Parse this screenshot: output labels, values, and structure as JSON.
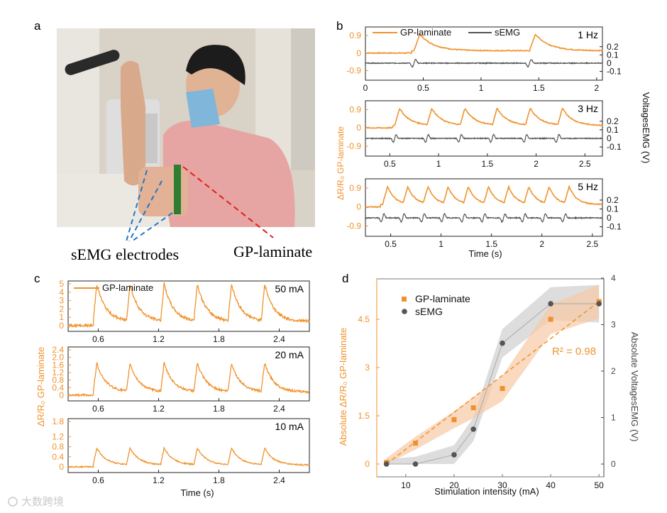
{
  "colors": {
    "orange": "#f0922b",
    "gray": "#555555",
    "orange_fill": "#f7c9a4",
    "gray_fill": "#cfcfcf"
  },
  "panel_a": {
    "letter": "a",
    "label_semg": "sEMG electrodes",
    "label_gp": "GP-laminate"
  },
  "panel_b": {
    "letter": "b",
    "y_left_label": "ΔR/R₀ GP-laminate",
    "y_right_label": "VoltagesEMG (V)",
    "legend": {
      "gp": "GP-laminate",
      "semg": "sEMG"
    },
    "xlabel": "Time (s)"
  },
  "panel_c": {
    "letter": "c",
    "y_label": "ΔR/R₀ GP-laminate",
    "legend_gp": "GP-laminate",
    "xlabel": "Time (s)"
  },
  "panel_d": {
    "letter": "d",
    "legend": {
      "gp": "GP-laminate",
      "semg": "sEMG"
    },
    "r2": "R² = 0.98",
    "xlabel": "Stimulation intensity (mA)",
    "y_left_label": "Absolute ΔR/R₀ GP-laminate",
    "y_right_label": "Absolute VoltagesEMG (V)"
  },
  "watermark": "大数跨境",
  "chart_data": [
    {
      "type": "line",
      "id": "b1",
      "annotation": "1 Hz",
      "x_ticks": [
        "0",
        "0.5",
        "1",
        "1.5",
        "2"
      ],
      "xlim": [
        0,
        2.05
      ],
      "y_left_ticks": [
        "0.9",
        "0",
        "-0.9"
      ],
      "y_right_ticks": [
        "0.2",
        "0.1",
        "0",
        "-0.1"
      ],
      "series": [
        {
          "name": "GP-laminate",
          "axis": "left",
          "pulse_times": [
            0.42,
            1.42
          ]
        },
        {
          "name": "sEMG",
          "axis": "right",
          "pulse_times": [
            0.42,
            1.42
          ]
        }
      ]
    },
    {
      "type": "line",
      "id": "b2",
      "annotation": "3 Hz",
      "x_ticks": [
        "0.5",
        "1",
        "1.5",
        "2",
        "2.5"
      ],
      "xlim": [
        0.25,
        2.68
      ],
      "y_left_ticks": [
        "0.9",
        "0",
        "-0.9"
      ],
      "y_right_ticks": [
        "0.2",
        "0.1",
        "0",
        "-0.1"
      ],
      "series": [
        {
          "name": "GP-laminate",
          "axis": "left",
          "pulse_times": [
            0.55,
            0.88,
            1.22,
            1.55,
            1.89,
            2.22
          ]
        },
        {
          "name": "sEMG",
          "axis": "right",
          "pulse_times": [
            0.55,
            0.88,
            1.22,
            1.55,
            1.89,
            2.22
          ]
        }
      ]
    },
    {
      "type": "line",
      "id": "b3",
      "annotation": "5 Hz",
      "x_ticks": [
        "0.5",
        "1",
        "1.5",
        "2",
        "2.5"
      ],
      "xlim": [
        0.25,
        2.6
      ],
      "y_left_ticks": [
        "0.9",
        "0",
        "-0.9"
      ],
      "y_right_ticks": [
        "0.2",
        "0.1",
        "0",
        "-0.1"
      ],
      "series": [
        {
          "name": "GP-laminate",
          "axis": "left",
          "pulse_times": [
            0.42,
            0.62,
            0.82,
            1.02,
            1.22,
            1.42,
            1.62,
            1.82,
            2.02,
            2.22
          ]
        },
        {
          "name": "sEMG",
          "axis": "right",
          "pulse_times": [
            0.42,
            0.62,
            0.82,
            1.02,
            1.22,
            1.42,
            1.62,
            1.82,
            2.02,
            2.22
          ]
        }
      ]
    },
    {
      "type": "line",
      "id": "c1",
      "annotation": "50 mA",
      "x_ticks": [
        "0.6",
        "1.2",
        "1.8",
        "2.4"
      ],
      "xlim": [
        0.3,
        2.7
      ],
      "y_ticks": [
        "5",
        "4",
        "3",
        "2",
        "1",
        "0"
      ],
      "ylim": [
        0,
        5
      ],
      "series": [
        {
          "name": "GP-laminate",
          "peak": 5.0,
          "pulse_times": [
            0.55,
            0.88,
            1.22,
            1.55,
            1.89,
            2.22
          ]
        }
      ]
    },
    {
      "type": "line",
      "id": "c2",
      "annotation": "20 mA",
      "x_ticks": [
        "0.6",
        "1.2",
        "1.8",
        "2.4"
      ],
      "xlim": [
        0.3,
        2.7
      ],
      "y_ticks": [
        "2.4",
        "2.0",
        "1.6",
        "1.2",
        "0.8",
        "0.4",
        "0"
      ],
      "ylim": [
        0,
        2.4
      ],
      "series": [
        {
          "name": "GP-laminate",
          "peak": 1.7,
          "pulse_times": [
            0.55,
            0.88,
            1.22,
            1.55,
            1.89,
            2.22
          ]
        }
      ]
    },
    {
      "type": "line",
      "id": "c3",
      "annotation": "10 mA",
      "x_ticks": [
        "0.6",
        "1.2",
        "1.8",
        "2.4"
      ],
      "xlim": [
        0.3,
        2.7
      ],
      "y_ticks": [
        "1.8",
        "1.2",
        "0.8",
        "0.4",
        "0"
      ],
      "ylim": [
        0,
        1.8
      ],
      "series": [
        {
          "name": "GP-laminate",
          "peak": 0.75,
          "pulse_times": [
            0.55,
            0.88,
            1.22,
            1.55,
            1.89,
            2.22
          ]
        }
      ]
    },
    {
      "type": "scatter",
      "id": "d",
      "x": [
        6,
        12,
        20,
        24,
        30,
        40,
        50
      ],
      "xlim": [
        4,
        51
      ],
      "x_ticks": [
        "10",
        "20",
        "30",
        "40",
        "50"
      ],
      "y_left_ticks": [
        "0",
        "1.5",
        "3",
        "4.5"
      ],
      "ylim_left": [
        0,
        5.85
      ],
      "y_right_ticks": [
        "0",
        "1",
        "2",
        "3",
        "4"
      ],
      "ylim_right": [
        0,
        4
      ],
      "series": [
        {
          "name": "GP-laminate",
          "axis": "left",
          "x": [
            6,
            12,
            20,
            24,
            30,
            40,
            50
          ],
          "values": [
            0.05,
            0.65,
            1.38,
            1.75,
            2.35,
            4.5,
            5.05
          ]
        },
        {
          "name": "sEMG",
          "axis": "right",
          "x": [
            6,
            12,
            20,
            24,
            30,
            40,
            50
          ],
          "values": [
            0.0,
            0.0,
            0.2,
            0.75,
            2.6,
            3.45,
            3.45
          ]
        }
      ],
      "fit": {
        "type": "linear",
        "label": "R² = 0.98"
      }
    }
  ]
}
